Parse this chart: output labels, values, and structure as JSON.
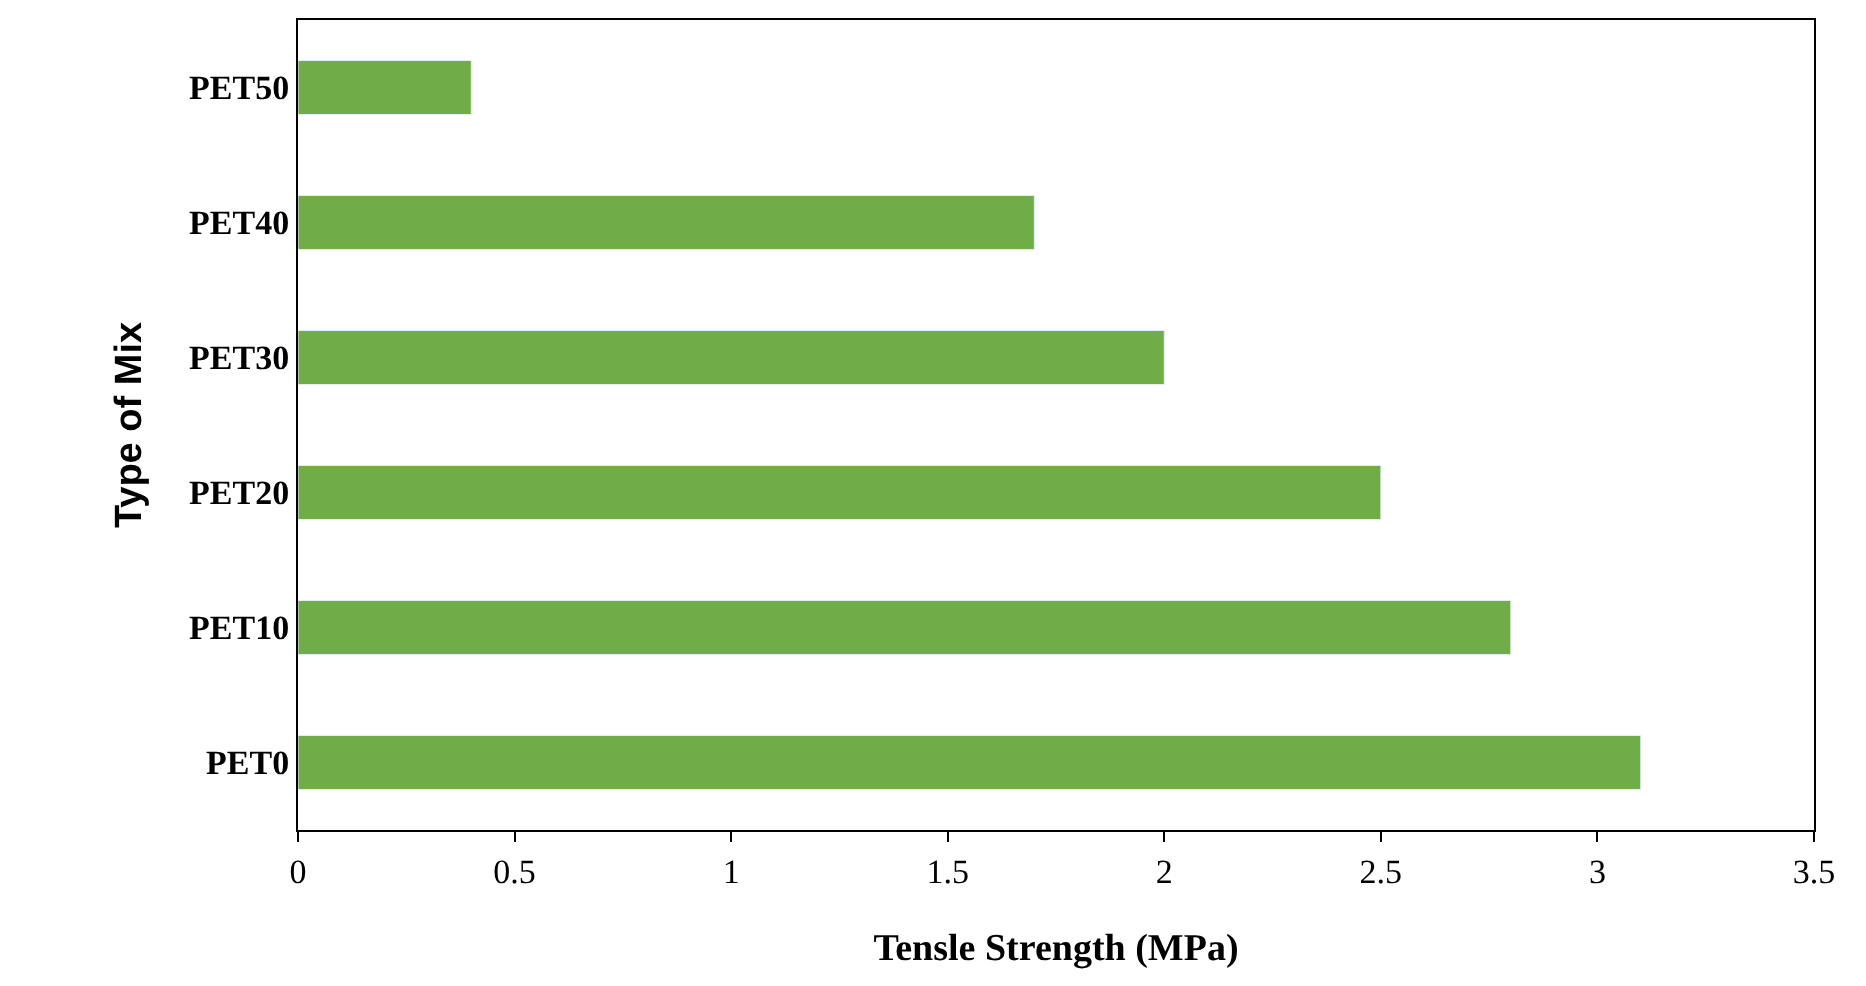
{
  "chart_data": {
    "type": "bar",
    "orientation": "horizontal",
    "categories": [
      "PET50",
      "PET40",
      "PET30",
      "PET20",
      "PET10",
      "PET0"
    ],
    "values": [
      0.4,
      1.7,
      2.0,
      2.5,
      2.8,
      3.1
    ],
    "color": "#70ad47",
    "xlabel": "Tensle Strength (MPa)",
    "ylabel": "Type of Mix",
    "xlim": [
      0,
      3.5
    ],
    "xticks": [
      0,
      0.5,
      1,
      1.5,
      2,
      2.5,
      3,
      3.5
    ]
  }
}
